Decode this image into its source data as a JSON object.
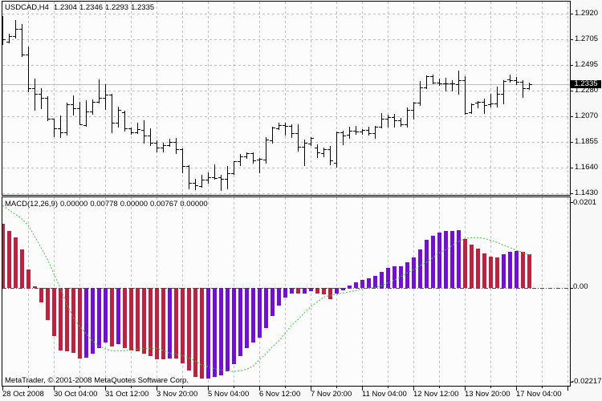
{
  "price_pane": {
    "symbol_timeframe": "USDCAD,H4",
    "ohlc": {
      "open": "1.2304",
      "high": "1.2346",
      "low": "1.2293",
      "close": "1.2335"
    },
    "axis_labels": [
      "1.2920",
      "1.2705",
      "1.2495",
      "1.2280",
      "1.2070",
      "1.1855",
      "1.1640",
      "1.1430"
    ],
    "current_price": "1.2335"
  },
  "macd_pane": {
    "indicator_name": "MACD(12,26,9)",
    "values": [
      "0.00000",
      "0.00778",
      "0.00000",
      "0.00767",
      "0.00000"
    ],
    "axis_labels": {
      "max": "0.0201",
      "zero": "0.00",
      "min": "-0.02217"
    }
  },
  "time_axis": {
    "labels": [
      "28 Oct 2008",
      "30 Oct 04:00",
      "31 Oct 12:00",
      "3 Nov 20:00",
      "5 Nov 04:00",
      "6 Nov 12:00",
      "7 Nov 20:00",
      "11 Nov 04:00",
      "12 Nov 12:00",
      "13 Nov 20:00",
      "17 Nov 04:00"
    ]
  },
  "footer": {
    "copyright": "MetaTrader, © 2001-2008 MetaQuotes Software Corp."
  },
  "colors": {
    "background": "#FCFCFC",
    "bars": "#000000",
    "grid": "#C0C0C0",
    "current_price_line": "#C0C0C0",
    "histogram_up": "#8000FF",
    "histogram_down": "#DC143C",
    "signal": "#32CD32",
    "zero_line": "#483D8B"
  },
  "chart_data": [
    {
      "type": "bar",
      "bar_style": "ohlc",
      "title": "USDCAD,H4",
      "xlabel": "",
      "ylabel": "",
      "x_tick_labels": [
        "28 Oct 2008",
        "30 Oct 04:00",
        "31 Oct 12:00",
        "3 Nov 20:00",
        "5 Nov 04:00",
        "6 Nov 12:00",
        "7 Nov 20:00",
        "11 Nov 04:00",
        "12 Nov 12:00",
        "13 Nov 20:00",
        "17 Nov 04:00"
      ],
      "x_tick_bar_index": [
        0,
        8,
        16,
        24,
        32,
        40,
        48,
        56,
        64,
        72,
        80
      ],
      "y_ticks": [
        1.292,
        1.2705,
        1.2495,
        1.228,
        1.207,
        1.1855,
        1.164,
        1.143
      ],
      "ylim": [
        1.1417,
        1.302
      ],
      "grid": true,
      "current_price": 1.2335,
      "open": [
        1.272,
        1.2687,
        1.2734,
        1.2794,
        1.2581,
        1.2301,
        1.2255,
        1.2222,
        1.2049,
        1.1969,
        1.1936,
        1.2168,
        1.2135,
        1.1995,
        1.2108,
        1.2188,
        1.2222,
        1.2248,
        1.2015,
        1.2102,
        1.1969,
        1.1936,
        1.1955,
        1.1909,
        1.1849,
        1.1809,
        1.1829,
        1.1856,
        1.1796,
        1.1656,
        1.1516,
        1.149,
        1.1543,
        1.1563,
        1.1563,
        1.155,
        1.1596,
        1.1696,
        1.1736,
        1.1763,
        1.1709,
        1.1709,
        1.1869,
        1.1969,
        1.1995,
        1.1989,
        1.1929,
        1.1816,
        1.1842,
        1.1809,
        1.1763,
        1.1796,
        1.1683,
        1.1936,
        1.1916,
        1.1949,
        1.1942,
        1.1955,
        1.1929,
        1.1982,
        1.2049,
        1.2062,
        1.2035,
        1.2002,
        1.2122,
        1.2182,
        1.2308,
        1.2401,
        1.2348,
        1.2341,
        1.2341,
        1.2335,
        1.2368,
        1.2102,
        1.2182,
        1.2188,
        1.2168,
        1.2175,
        1.2255,
        1.2375,
        1.2368,
        1.2355,
        1.2304
      ],
      "high": [
        1.29,
        1.2754,
        1.2867,
        1.2834,
        1.2647,
        1.2381,
        1.2301,
        1.2235,
        1.2049,
        1.2075,
        1.2182,
        1.2242,
        1.2188,
        1.2202,
        1.2208,
        1.2375,
        1.2335,
        1.2255,
        1.2148,
        1.2115,
        1.1975,
        1.2015,
        1.2035,
        1.1969,
        1.1869,
        1.1849,
        1.1882,
        1.1889,
        1.1803,
        1.1663,
        1.155,
        1.1583,
        1.1603,
        1.1669,
        1.1583,
        1.1656,
        1.1696,
        1.1756,
        1.1769,
        1.1769,
        1.1723,
        1.1896,
        1.1982,
        1.2015,
        1.2015,
        1.2002,
        1.2002,
        1.1876,
        1.1896,
        1.1836,
        1.1809,
        1.1822,
        1.1942,
        1.1949,
        1.1982,
        1.1989,
        1.1962,
        1.1982,
        1.1989,
        1.2095,
        1.2082,
        1.2089,
        1.2055,
        1.2142,
        1.2188,
        1.2361,
        1.2408,
        1.2414,
        1.2381,
        1.2388,
        1.2368,
        1.2448,
        1.2401,
        1.2175,
        1.2195,
        1.2215,
        1.2255,
        1.2315,
        1.2368,
        1.2414,
        1.2395,
        1.2368,
        1.2346
      ],
      "low": [
        1.2667,
        1.2681,
        1.272,
        1.2567,
        1.2275,
        1.2122,
        1.2135,
        1.2035,
        1.1902,
        1.1896,
        1.1916,
        1.2082,
        1.2002,
        1.199,
        1.2089,
        1.2182,
        1.2128,
        1.1936,
        1.1982,
        1.1949,
        1.1922,
        1.1929,
        1.1849,
        1.1829,
        1.1776,
        1.1776,
        1.1822,
        1.1763,
        1.1603,
        1.147,
        1.1463,
        1.1483,
        1.1516,
        1.155,
        1.1457,
        1.147,
        1.159,
        1.1663,
        1.1723,
        1.1683,
        1.1603,
        1.1683,
        1.1849,
        1.1962,
        1.1916,
        1.1896,
        1.1783,
        1.1663,
        1.1829,
        1.1729,
        1.1736,
        1.1669,
        1.165,
        1.1836,
        1.1889,
        1.1922,
        1.1922,
        1.1916,
        1.1889,
        1.1975,
        1.1982,
        1.1982,
        1.1989,
        1.1982,
        1.2049,
        1.2162,
        1.2301,
        1.2341,
        1.2328,
        1.2281,
        1.2281,
        1.2255,
        1.2089,
        1.2095,
        1.2142,
        1.2095,
        1.2148,
        1.2148,
        1.2175,
        1.2355,
        1.2335,
        1.2228,
        1.2293
      ],
      "close": [
        1.2707,
        1.2734,
        1.2794,
        1.2581,
        1.2301,
        1.2255,
        1.2222,
        1.2049,
        1.1969,
        1.1936,
        1.2168,
        1.2135,
        1.2002,
        1.2108,
        1.2188,
        1.2222,
        1.2248,
        1.2015,
        1.2122,
        1.1969,
        1.1936,
        1.1962,
        1.1909,
        1.1849,
        1.1809,
        1.1829,
        1.1856,
        1.1796,
        1.1656,
        1.1516,
        1.1497,
        1.1543,
        1.1563,
        1.1556,
        1.155,
        1.1596,
        1.1696,
        1.1736,
        1.1763,
        1.1703,
        1.1716,
        1.1876,
        1.1975,
        1.1995,
        1.1989,
        1.1929,
        1.1816,
        1.1849,
        1.1889,
        1.1769,
        1.1796,
        1.1703,
        1.1936,
        1.1909,
        1.1949,
        1.1942,
        1.1955,
        1.1929,
        1.1982,
        1.2049,
        1.2062,
        1.2035,
        1.2002,
        1.2122,
        1.2182,
        1.2308,
        1.2401,
        1.2348,
        1.2341,
        1.2341,
        1.2341,
        1.2368,
        1.2095,
        1.2168,
        1.2188,
        1.2162,
        1.2175,
        1.2255,
        1.2361,
        1.2368,
        1.2355,
        1.2301,
        1.2335
      ]
    },
    {
      "type": "bar",
      "title": "MACD(12,26,9)",
      "xlabel": "",
      "ylabel": "",
      "ylim": [
        -0.02217,
        0.0201
      ],
      "y_ticks": [
        0.0201,
        0.0,
        -0.02217
      ],
      "zero_line": 0.0,
      "grid": true,
      "series": [
        {
          "name": "MACD histogram",
          "style": "histogram",
          "values": [
            0.01497,
            0.01327,
            0.01176,
            0.00893,
            0.00421,
            0.00025,
            -0.00347,
            -0.00768,
            -0.01146,
            -0.0148,
            -0.01499,
            -0.01542,
            -0.01669,
            -0.01656,
            -0.01561,
            -0.01424,
            -0.01297,
            -0.01386,
            -0.01335,
            -0.01429,
            -0.0148,
            -0.01499,
            -0.01556,
            -0.01612,
            -0.01688,
            -0.0169,
            -0.01669,
            -0.01672,
            -0.01782,
            -0.01952,
            -0.02096,
            -0.02141,
            -0.02139,
            -0.02103,
            -0.02058,
            -0.01964,
            -0.01801,
            -0.01612,
            -0.01424,
            -0.01291,
            -0.01184,
            -0.00944,
            -0.00668,
            -0.00423,
            -0.00234,
            -0.00145,
            -0.0015,
            -0.00145,
            -0.00083,
            -0.00145,
            -0.00164,
            -0.00278,
            -0.00145,
            -0.00064,
            0.00043,
            0.00125,
            0.00176,
            0.00213,
            0.0027,
            0.00364,
            0.00459,
            0.00497,
            0.00499,
            0.00591,
            0.00704,
            0.00893,
            0.0112,
            0.01214,
            0.0129,
            0.01327,
            0.0133,
            0.01346,
            0.01144,
            0.01006,
            0.00912,
            0.00799,
            0.00723,
            0.00704,
            0.0078,
            0.00836,
            0.00855,
            0.00836,
            0.00778
          ],
          "direction": [
            "down",
            "down",
            "down",
            "down",
            "down",
            "down",
            "down",
            "down",
            "down",
            "down",
            "down",
            "down",
            "down",
            "up",
            "up",
            "up",
            "up",
            "down",
            "up",
            "down",
            "down",
            "down",
            "down",
            "down",
            "down",
            "down",
            "up",
            "down",
            "down",
            "down",
            "down",
            "down",
            "up",
            "up",
            "up",
            "up",
            "up",
            "up",
            "up",
            "up",
            "up",
            "up",
            "up",
            "up",
            "up",
            "up",
            "down",
            "up",
            "up",
            "down",
            "down",
            "down",
            "up",
            "up",
            "up",
            "up",
            "up",
            "up",
            "up",
            "up",
            "up",
            "up",
            "up",
            "up",
            "up",
            "up",
            "up",
            "up",
            "up",
            "up",
            "up",
            "up",
            "down",
            "down",
            "down",
            "down",
            "down",
            "down",
            "up",
            "up",
            "up",
            "down",
            "down"
          ]
        },
        {
          "name": "Signal",
          "style": "dashed-line",
          "values": [
            0.01931,
            0.01818,
            0.01724,
            0.0161,
            0.01459,
            0.01195,
            0.00931,
            0.00648,
            0.00308,
            -0.00032,
            -0.00409,
            -0.00711,
            -0.00919,
            -0.01089,
            -0.01259,
            -0.01373,
            -0.01448,
            -0.01486,
            -0.01486,
            -0.01486,
            -0.01467,
            -0.01448,
            -0.01429,
            -0.01429,
            -0.01429,
            -0.01486,
            -0.01542,
            -0.01571,
            -0.01599,
            -0.01656,
            -0.01731,
            -0.01826,
            -0.01863,
            -0.01911,
            -0.01939,
            -0.01958,
            -0.01976,
            -0.01958,
            -0.0192,
            -0.01845,
            -0.01693,
            -0.01561,
            -0.01391,
            -0.01259,
            -0.0107,
            -0.00882,
            -0.0075,
            -0.0058,
            -0.00448,
            -0.00334,
            -0.00221,
            -0.00183,
            -0.00155,
            -0.00126,
            -0.00098,
            -0.0007,
            -0.00032,
            -0.00013,
            6e-05,
            0.00043,
            0.00119,
            0.00176,
            0.00251,
            0.00346,
            0.00421,
            0.00515,
            0.00591,
            0.00704,
            0.00818,
            0.00893,
            0.00987,
            0.01082,
            0.01157,
            0.01176,
            0.01176,
            0.01157,
            0.0111,
            0.01063,
            0.00997,
            0.0094,
            0.00874,
            0.0082,
            0.00767
          ]
        }
      ]
    }
  ]
}
